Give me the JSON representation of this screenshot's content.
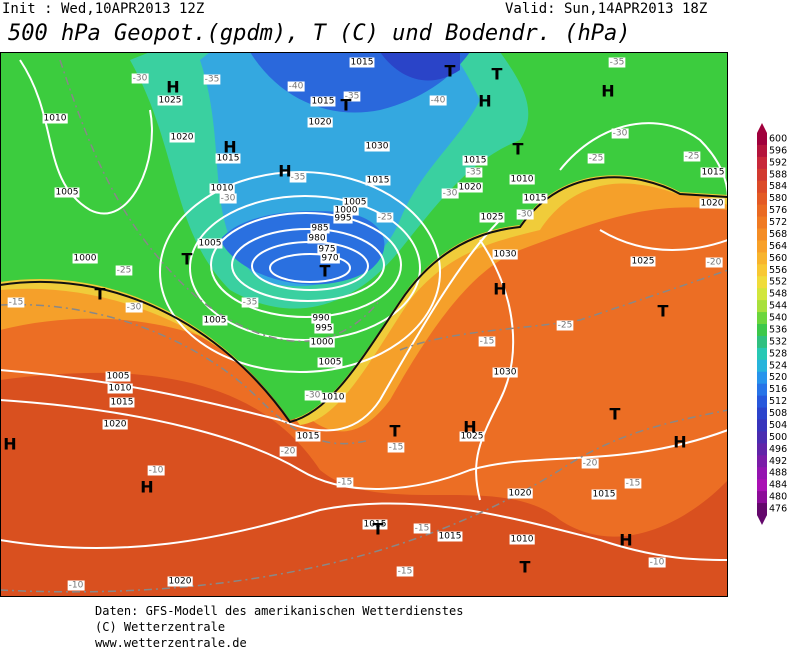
{
  "header": {
    "init": "Init : Wed,10APR2013 12Z",
    "valid": "Valid: Sun,14APR2013 18Z",
    "title": "500 hPa Geopot.(gpdm), T (C) und Bodendr. (hPa)"
  },
  "map": {
    "pressure_labels": [
      1015,
      1025,
      1010,
      1020,
      1015,
      1020,
      1015,
      1030,
      1015,
      1010,
      1005,
      1005,
      1000,
      995,
      985,
      980,
      975,
      970,
      1005,
      1000,
      1005,
      990,
      995,
      1000,
      1005,
      1005,
      1010,
      1015,
      1020,
      1010,
      1015,
      1025,
      1030,
      1030,
      1025,
      1015,
      1020,
      1025,
      1010,
      1015,
      1015,
      1020,
      1020,
      1015,
      1010,
      1015,
      1015,
      1020
    ],
    "temperature_labels": [
      -30,
      -35,
      -40,
      -35,
      -40,
      -35,
      -30,
      -35,
      -30,
      -30,
      -25,
      -25,
      -30,
      -35,
      -15,
      -15,
      -25,
      -30,
      -20,
      -15,
      -15,
      -20,
      -15,
      -10,
      -10,
      -10,
      -15,
      -15,
      -25,
      -25,
      -30,
      -20,
      -35
    ],
    "centers": [
      "H",
      "T",
      "T",
      "H",
      "H",
      "T",
      "H",
      "T",
      "H",
      "T",
      "T",
      "T",
      "H",
      "T",
      "H",
      "H",
      "T",
      "H",
      "T",
      "H",
      "H",
      "T",
      "T"
    ]
  },
  "legend": {
    "labels": [
      600,
      596,
      592,
      588,
      584,
      580,
      576,
      572,
      568,
      564,
      560,
      556,
      552,
      548,
      544,
      540,
      536,
      532,
      528,
      524,
      520,
      516,
      512,
      508,
      504,
      500,
      496,
      492,
      488,
      484,
      480,
      476
    ],
    "colors": [
      "#a0003c",
      "#b4143c",
      "#c8283a",
      "#d23a30",
      "#dc4a28",
      "#e45a24",
      "#ea6a22",
      "#f07a22",
      "#f48c24",
      "#f8a028",
      "#f8b42c",
      "#f8c832",
      "#f0dc3a",
      "#d2e63c",
      "#a8e03c",
      "#6cd63c",
      "#3cc84a",
      "#30c080",
      "#28c8b4",
      "#28b4dc",
      "#2894ec",
      "#2874e8",
      "#2858dc",
      "#2c44cc",
      "#3834bc",
      "#4a2cb0",
      "#6024a8",
      "#7a1ca8",
      "#9414b0",
      "#aa10b4",
      "#8c0c98",
      "#64086c"
    ]
  },
  "footer": [
    "Daten: GFS-Modell des amerikanischen Wetterdienstes",
    "(C) Wetterzentrale",
    "www.wetterzentrale.de"
  ]
}
